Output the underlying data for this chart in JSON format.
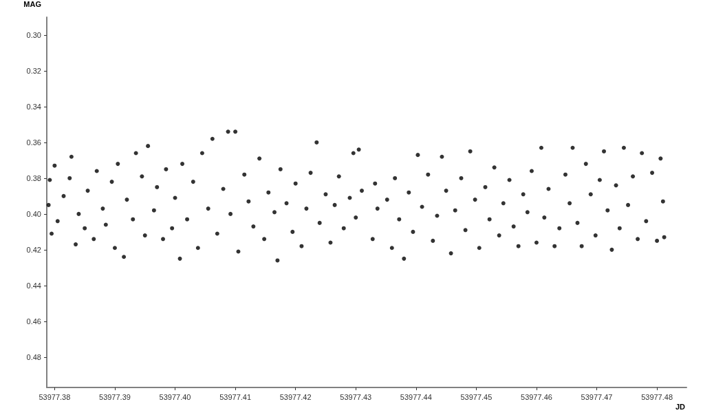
{
  "chart_data": {
    "type": "scatter",
    "xlabel": "JD",
    "ylabel": "MAG",
    "xlim": [
      53977.3787,
      53977.4849
    ],
    "ylim": [
      0.497,
      0.29
    ],
    "xticks": [
      {
        "value": 53977.38,
        "label": "53977.38"
      },
      {
        "value": 53977.39,
        "label": "53977.39"
      },
      {
        "value": 53977.4,
        "label": "53977.40"
      },
      {
        "value": 53977.41,
        "label": "53977.41"
      },
      {
        "value": 53977.42,
        "label": "53977.42"
      },
      {
        "value": 53977.43,
        "label": "53977.43"
      },
      {
        "value": 53977.44,
        "label": "53977.44"
      },
      {
        "value": 53977.45,
        "label": "53977.45"
      },
      {
        "value": 53977.46,
        "label": "53977.46"
      },
      {
        "value": 53977.47,
        "label": "53977.47"
      },
      {
        "value": 53977.48,
        "label": "53977.48"
      }
    ],
    "yticks": [
      {
        "value": 0.3,
        "label": "0.30"
      },
      0.32,
      0.34,
      0.36,
      0.38,
      {
        "value": 0.4,
        "label": "0.40"
      },
      0.42,
      0.44,
      0.46,
      0.48
    ],
    "grid": false,
    "marker": "circle",
    "series": [
      {
        "color": "#000000",
        "x": [
          53977.379,
          53977.3792,
          53977.3795,
          53977.38,
          53977.3805,
          53977.3815,
          53977.3825,
          53977.3828,
          53977.3835,
          53977.384,
          53977.385,
          53977.3855,
          53977.3865,
          53977.387,
          53977.388,
          53977.3885,
          53977.3895,
          53977.39,
          53977.3905,
          53977.3915,
          53977.392,
          53977.393,
          53977.3935,
          53977.3945,
          53977.395,
          53977.3955,
          53977.3965,
          53977.397,
          53977.398,
          53977.3985,
          53977.3995,
          53977.4,
          53977.4008,
          53977.4012,
          53977.402,
          53977.403,
          53977.4038,
          53977.4045,
          53977.4055,
          53977.4062,
          53977.407,
          53977.408,
          53977.4088,
          53977.4092,
          53977.41,
          53977.4105,
          53977.4115,
          53977.4122,
          53977.413,
          53977.414,
          53977.4148,
          53977.4155,
          53977.4165,
          53977.417,
          53977.4175,
          53977.4185,
          53977.4195,
          53977.42,
          53977.421,
          53977.4218,
          53977.4225,
          53977.4235,
          53977.424,
          53977.425,
          53977.4258,
          53977.4265,
          53977.4272,
          53977.428,
          53977.429,
          53977.4296,
          53977.43,
          53977.4305,
          53977.431,
          53977.4328,
          53977.4332,
          53977.4336,
          53977.4352,
          53977.436,
          53977.4365,
          53977.4372,
          53977.438,
          53977.4388,
          53977.4395,
          53977.4403,
          53977.441,
          53977.442,
          53977.4428,
          53977.4435,
          53977.4443,
          53977.445,
          53977.4458,
          53977.4465,
          53977.4475,
          53977.4482,
          53977.449,
          53977.4498,
          53977.4505,
          53977.4515,
          53977.4522,
          53977.453,
          53977.4538,
          53977.4545,
          53977.4555,
          53977.4562,
          53977.457,
          53977.4578,
          53977.4585,
          53977.4592,
          53977.46,
          53977.4608,
          53977.4613,
          53977.462,
          53977.463,
          53977.4638,
          53977.4648,
          53977.4655,
          53977.466,
          53977.4668,
          53977.4675,
          53977.4682,
          53977.469,
          53977.4698,
          53977.4705,
          53977.4712,
          53977.4718,
          53977.4725,
          53977.4732,
          53977.4738,
          53977.4745,
          53977.4752,
          53977.476,
          53977.4768,
          53977.4775,
          53977.4782,
          53977.4792,
          53977.48,
          53977.4806,
          53977.481,
          53977.4812
        ],
        "values": [
          0.395,
          0.381,
          0.411,
          0.373,
          0.404,
          0.39,
          0.38,
          0.368,
          0.417,
          0.4,
          0.408,
          0.387,
          0.414,
          0.376,
          0.397,
          0.406,
          0.382,
          0.419,
          0.372,
          0.424,
          0.392,
          0.403,
          0.366,
          0.379,
          0.412,
          0.362,
          0.398,
          0.385,
          0.414,
          0.375,
          0.408,
          0.391,
          0.425,
          0.372,
          0.403,
          0.382,
          0.419,
          0.366,
          0.397,
          0.358,
          0.411,
          0.386,
          0.354,
          0.4,
          0.354,
          0.421,
          0.378,
          0.393,
          0.407,
          0.369,
          0.414,
          0.388,
          0.399,
          0.426,
          0.375,
          0.394,
          0.41,
          0.383,
          0.418,
          0.397,
          0.377,
          0.36,
          0.405,
          0.389,
          0.416,
          0.395,
          0.379,
          0.408,
          0.391,
          0.366,
          0.402,
          0.364,
          0.387,
          0.414,
          0.383,
          0.397,
          0.392,
          0.419,
          0.38,
          0.403,
          0.425,
          0.388,
          0.41,
          0.367,
          0.396,
          0.378,
          0.415,
          0.401,
          0.368,
          0.387,
          0.422,
          0.398,
          0.38,
          0.409,
          0.365,
          0.392,
          0.419,
          0.385,
          0.403,
          0.374,
          0.412,
          0.394,
          0.381,
          0.407,
          0.418,
          0.389,
          0.399,
          0.376,
          0.416,
          0.363,
          0.402,
          0.386,
          0.418,
          0.408,
          0.378,
          0.394,
          0.363,
          0.405,
          0.418,
          0.372,
          0.389,
          0.412,
          0.381,
          0.365,
          0.398,
          0.42,
          0.384,
          0.408,
          0.363,
          0.395,
          0.379,
          0.414,
          0.366,
          0.404,
          0.377,
          0.415,
          0.369,
          0.393,
          0.413
        ]
      }
    ]
  }
}
